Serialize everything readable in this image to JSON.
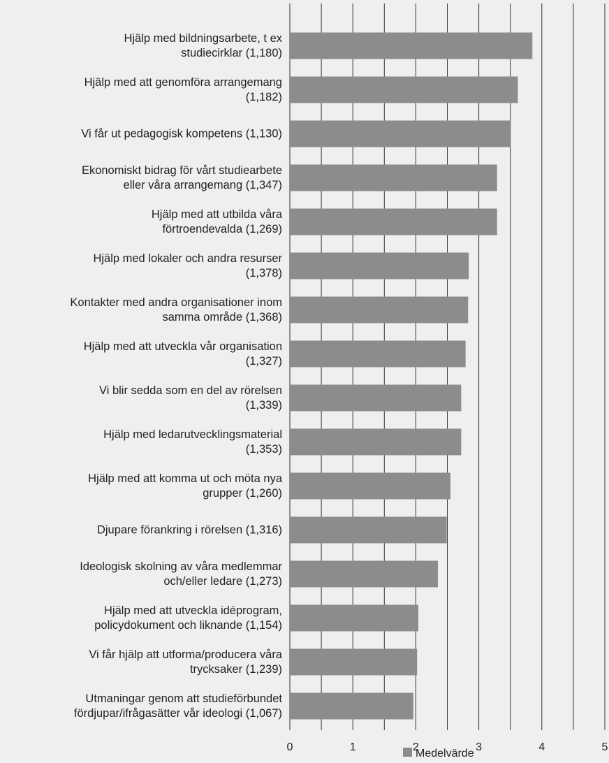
{
  "chart_data": {
    "type": "barh",
    "categories": [
      "Hjälp med bildningsarbete, t ex\nstudiecirklar (1,180)",
      "Hjälp med att genomföra arrangemang\n(1,182)",
      "Vi får ut pedagogisk kompetens (1,130)",
      "Ekonomiskt bidrag för vårt studiearbete\neller våra arrangemang (1,347)",
      "Hjälp med att utbilda våra\nförtroendevalda (1,269)",
      "Hjälp med lokaler och andra resurser\n(1,378)",
      "Kontakter med andra organisationer inom\nsamma område (1,368)",
      "Hjälp med att utveckla vår organisation\n(1,327)",
      "Vi blir sedda som en del av rörelsen\n(1,339)",
      "Hjälp med ledarutvecklingsmaterial\n(1,353)",
      "Hjälp med att komma ut och möta nya\ngrupper (1,260)",
      "Djupare förankring i rörelsen (1,316)",
      "Ideologisk skolning av våra medlemmar\noch/eller ledare (1,273)",
      "Hjälp med att utveckla idéprogram,\npolicydokument och liknande (1,154)",
      "Vi får hjälp att utforma/producera våra\ntrycksaker (1,239)",
      "Utmaningar genom att studieförbundet\nfördjupar/ifrågasätter vår ideologi (1,067)"
    ],
    "series": [
      {
        "name": "Medelvärde",
        "color": "#8c8c8c",
        "values": [
          3.85,
          3.62,
          3.51,
          3.29,
          3.29,
          2.84,
          2.83,
          2.79,
          2.72,
          2.72,
          2.55,
          2.49,
          2.35,
          2.04,
          2.02,
          1.96
        ]
      }
    ],
    "xlim": [
      0,
      5
    ],
    "xticks": [
      0,
      1,
      2,
      3,
      4,
      5
    ],
    "gridlines": [
      0,
      0.5,
      1,
      1.5,
      2,
      2.5,
      3,
      3.5,
      4,
      4.5,
      5
    ],
    "legend": "bottom"
  }
}
